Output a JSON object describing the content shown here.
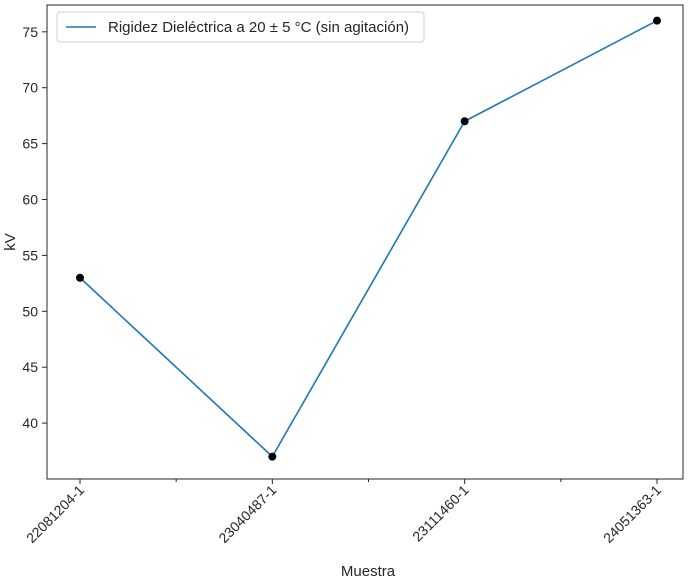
{
  "chart_data": {
    "type": "line",
    "categories": [
      "22081204-1",
      "23040487-1",
      "23111460-1",
      "24051363-1"
    ],
    "minor_x_ticks": [
      0.5,
      1.5,
      2.5
    ],
    "series": [
      {
        "name": "Rigidez Dieléctrica a 20 ± 5 °C (sin agitación)",
        "values": [
          53,
          37,
          67,
          76
        ],
        "color": "#1f77b4",
        "marker_color": "#000000"
      }
    ],
    "xlabel": "Muestra",
    "ylabel": "kV",
    "ylim": [
      35,
      77.4
    ],
    "yticks": [
      40,
      45,
      50,
      55,
      60,
      65,
      70,
      75
    ],
    "xtick_rotation": 45,
    "grid": false,
    "legend_position": "top-left"
  }
}
